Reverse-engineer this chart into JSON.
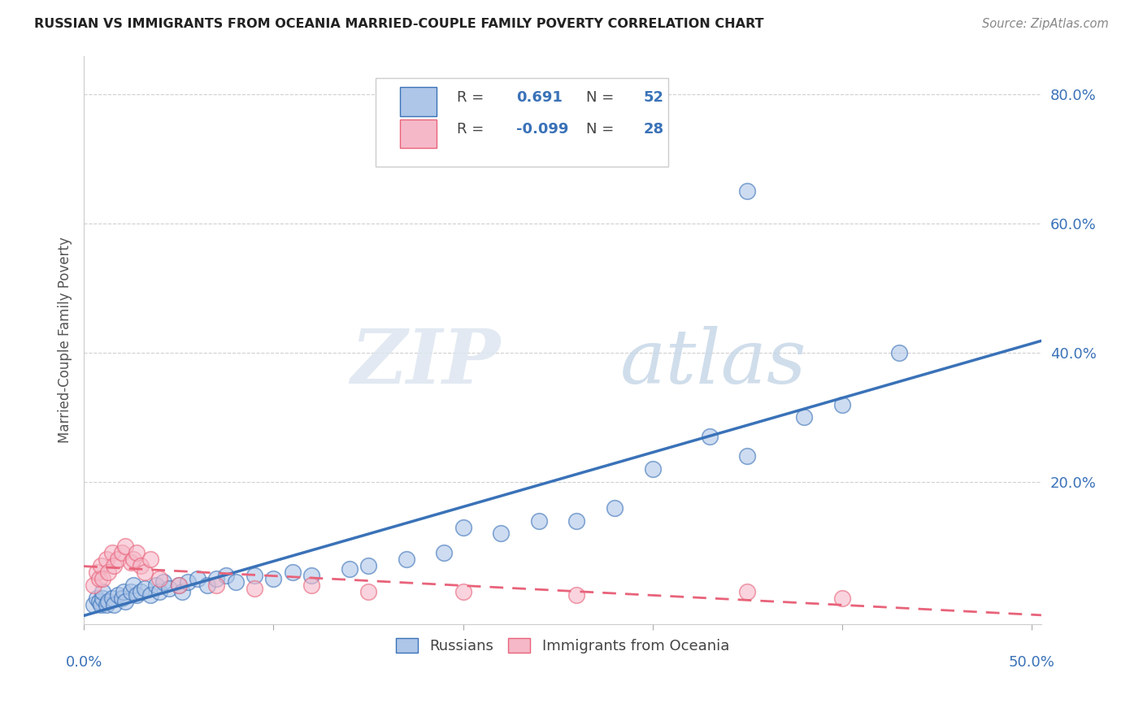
{
  "title": "RUSSIAN VS IMMIGRANTS FROM OCEANIA MARRIED-COUPLE FAMILY POVERTY CORRELATION CHART",
  "source": "Source: ZipAtlas.com",
  "ylabel": "Married-Couple Family Poverty",
  "ytick_vals": [
    0.8,
    0.6,
    0.4,
    0.2
  ],
  "ytick_labels": [
    "80.0%",
    "60.0%",
    "40.0%",
    "20.0%"
  ],
  "xlim": [
    0.0,
    0.505
  ],
  "ylim": [
    -0.02,
    0.86
  ],
  "blue_color": "#aec6e8",
  "pink_color": "#f5b8c8",
  "blue_line_color": "#3a72b8",
  "pink_line_color": "#e8637a",
  "blue_scatter": [
    [
      0.005,
      0.01
    ],
    [
      0.007,
      0.02
    ],
    [
      0.008,
      0.015
    ],
    [
      0.009,
      0.01
    ],
    [
      0.01,
      0.02
    ],
    [
      0.01,
      0.03
    ],
    [
      0.012,
      0.01
    ],
    [
      0.013,
      0.015
    ],
    [
      0.015,
      0.02
    ],
    [
      0.016,
      0.01
    ],
    [
      0.018,
      0.025
    ],
    [
      0.02,
      0.02
    ],
    [
      0.021,
      0.03
    ],
    [
      0.022,
      0.015
    ],
    [
      0.025,
      0.03
    ],
    [
      0.026,
      0.04
    ],
    [
      0.028,
      0.025
    ],
    [
      0.03,
      0.03
    ],
    [
      0.032,
      0.035
    ],
    [
      0.035,
      0.025
    ],
    [
      0.038,
      0.04
    ],
    [
      0.04,
      0.03
    ],
    [
      0.042,
      0.045
    ],
    [
      0.045,
      0.035
    ],
    [
      0.05,
      0.04
    ],
    [
      0.052,
      0.03
    ],
    [
      0.055,
      0.045
    ],
    [
      0.06,
      0.05
    ],
    [
      0.065,
      0.04
    ],
    [
      0.07,
      0.05
    ],
    [
      0.075,
      0.055
    ],
    [
      0.08,
      0.045
    ],
    [
      0.09,
      0.055
    ],
    [
      0.1,
      0.05
    ],
    [
      0.11,
      0.06
    ],
    [
      0.12,
      0.055
    ],
    [
      0.14,
      0.065
    ],
    [
      0.15,
      0.07
    ],
    [
      0.17,
      0.08
    ],
    [
      0.19,
      0.09
    ],
    [
      0.2,
      0.13
    ],
    [
      0.22,
      0.12
    ],
    [
      0.24,
      0.14
    ],
    [
      0.26,
      0.14
    ],
    [
      0.28,
      0.16
    ],
    [
      0.3,
      0.22
    ],
    [
      0.33,
      0.27
    ],
    [
      0.35,
      0.24
    ],
    [
      0.38,
      0.3
    ],
    [
      0.4,
      0.32
    ],
    [
      0.43,
      0.4
    ],
    [
      0.35,
      0.65
    ]
  ],
  "pink_scatter": [
    [
      0.005,
      0.04
    ],
    [
      0.007,
      0.06
    ],
    [
      0.008,
      0.05
    ],
    [
      0.009,
      0.07
    ],
    [
      0.01,
      0.05
    ],
    [
      0.012,
      0.08
    ],
    [
      0.013,
      0.06
    ],
    [
      0.015,
      0.09
    ],
    [
      0.016,
      0.07
    ],
    [
      0.018,
      0.08
    ],
    [
      0.02,
      0.09
    ],
    [
      0.022,
      0.1
    ],
    [
      0.025,
      0.075
    ],
    [
      0.026,
      0.08
    ],
    [
      0.028,
      0.09
    ],
    [
      0.03,
      0.07
    ],
    [
      0.032,
      0.06
    ],
    [
      0.035,
      0.08
    ],
    [
      0.04,
      0.05
    ],
    [
      0.05,
      0.04
    ],
    [
      0.07,
      0.04
    ],
    [
      0.09,
      0.035
    ],
    [
      0.12,
      0.04
    ],
    [
      0.15,
      0.03
    ],
    [
      0.2,
      0.03
    ],
    [
      0.26,
      0.025
    ],
    [
      0.35,
      0.03
    ],
    [
      0.4,
      0.02
    ]
  ],
  "watermark_zip": "ZIP",
  "watermark_atlas": "atlas",
  "background_color": "#ffffff",
  "grid_color": "#d0d0d0"
}
